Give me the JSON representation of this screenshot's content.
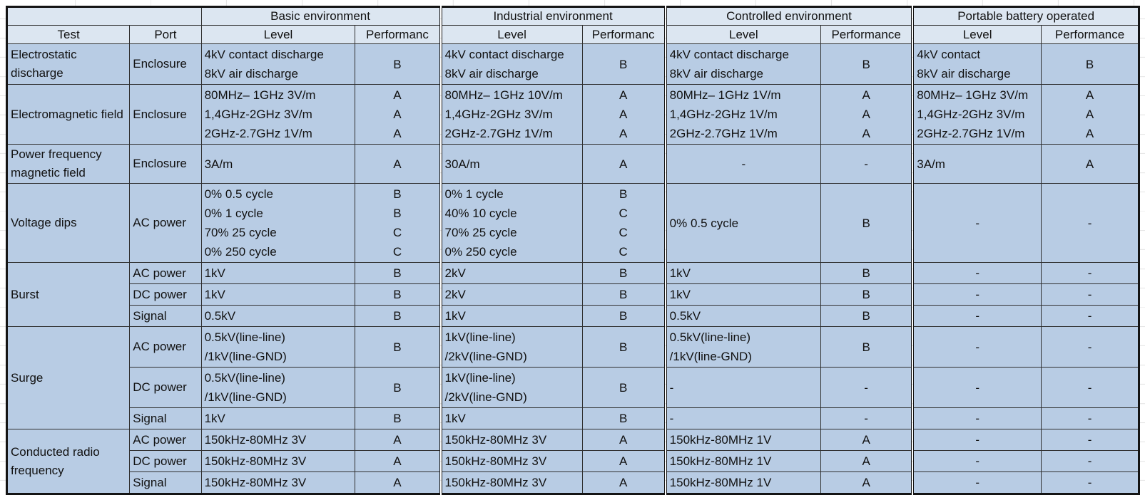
{
  "table": {
    "environments": [
      "Basic environment",
      "Industrial environment",
      "Controlled environment",
      "Portable battery operated"
    ],
    "col_headers": {
      "test": "Test",
      "port": "Port",
      "groups": [
        {
          "level": "Level",
          "performance": "Performanc"
        },
        {
          "level": "Level",
          "performance": "Performanc"
        },
        {
          "level": "Level",
          "performance": "Performance"
        },
        {
          "level": "Level",
          "performance": "Performance"
        }
      ]
    },
    "colors": {
      "header_bg": "#dce6f1",
      "body_bg": "#b8cce4",
      "border": "#141414"
    },
    "rows": [
      {
        "test": "Electrostatic discharge",
        "test_rowspan": 1,
        "port": "Enclosure",
        "groups": [
          {
            "level": [
              "4kV contact discharge",
              "8kV air discharge"
            ],
            "perf": [
              "B"
            ]
          },
          {
            "level": [
              "4kV contact discharge",
              "8kV air discharge"
            ],
            "perf": [
              "B"
            ]
          },
          {
            "level": [
              "4kV contact discharge",
              "8kV air discharge"
            ],
            "perf": [
              "B"
            ]
          },
          {
            "level": [
              "4kV contact",
              "8kV air discharge"
            ],
            "perf": [
              "B"
            ]
          }
        ]
      },
      {
        "test": "Electromagnetic field",
        "test_rowspan": 1,
        "port": "Enclosure",
        "groups": [
          {
            "level": [
              "80MHz– 1GHz 3V/m",
              "1,4GHz-2GHz 3V/m",
              "2GHz-2.7GHz 1V/m"
            ],
            "perf": [
              "A",
              "A",
              "A"
            ]
          },
          {
            "level": [
              "80MHz– 1GHz 10V/m",
              "1,4GHz-2GHz 3V/m",
              "2GHz-2.7GHz 1V/m"
            ],
            "perf": [
              "A",
              "A",
              "A"
            ]
          },
          {
            "level": [
              "80MHz– 1GHz 1V/m",
              "1,4GHz-2GHz 1V/m",
              "2GHz-2.7GHz 1V/m"
            ],
            "perf": [
              "A",
              "A",
              "A"
            ]
          },
          {
            "level": [
              "80MHz– 1GHz 3V/m",
              "1,4GHz-2GHz 3V/m",
              "2GHz-2.7GHz 1V/m"
            ],
            "perf": [
              "A",
              "A",
              "A"
            ]
          }
        ]
      },
      {
        "test": "Power frequency magnetic field",
        "test_rowspan": 1,
        "port": "Enclosure",
        "groups": [
          {
            "level": [
              "3A/m"
            ],
            "perf": [
              "A"
            ]
          },
          {
            "level": [
              "30A/m"
            ],
            "perf": [
              "A"
            ]
          },
          {
            "level": [
              "-"
            ],
            "perf": [
              "-"
            ]
          },
          {
            "level": [
              "3A/m"
            ],
            "perf": [
              "A"
            ]
          }
        ]
      },
      {
        "test": "Voltage dips",
        "test_rowspan": 1,
        "port": "AC power",
        "groups": [
          {
            "level": [
              "0% 0.5 cycle",
              "0% 1 cycle",
              "70% 25 cycle",
              "0% 250 cycle"
            ],
            "perf": [
              "B",
              "B",
              "C",
              "C"
            ]
          },
          {
            "level": [
              "0% 1 cycle",
              "40% 10 cycle",
              "70% 25 cycle",
              "0% 250 cycle"
            ],
            "perf": [
              "B",
              "C",
              "C",
              "C"
            ]
          },
          {
            "level": [
              "0% 0.5 cycle"
            ],
            "perf": [
              "B"
            ]
          },
          {
            "level": [
              "-"
            ],
            "perf": [
              "-"
            ]
          }
        ]
      },
      {
        "test": "Burst",
        "test_rowspan": 3,
        "port": "AC power",
        "groups": [
          {
            "level": [
              "1kV"
            ],
            "perf": [
              "B"
            ]
          },
          {
            "level": [
              "2kV"
            ],
            "perf": [
              "B"
            ]
          },
          {
            "level": [
              "1kV"
            ],
            "perf": [
              "B"
            ]
          },
          {
            "level": [
              "-"
            ],
            "perf": [
              "-"
            ]
          }
        ]
      },
      {
        "port": "DC power",
        "groups": [
          {
            "level": [
              "1kV"
            ],
            "perf": [
              "B"
            ]
          },
          {
            "level": [
              "2kV"
            ],
            "perf": [
              "B"
            ]
          },
          {
            "level": [
              "1kV"
            ],
            "perf": [
              "B"
            ]
          },
          {
            "level": [
              "-"
            ],
            "perf": [
              "-"
            ]
          }
        ]
      },
      {
        "port": "Signal",
        "groups": [
          {
            "level": [
              "0.5kV"
            ],
            "perf": [
              "B"
            ]
          },
          {
            "level": [
              "1kV"
            ],
            "perf": [
              "B"
            ]
          },
          {
            "level": [
              "0.5kV"
            ],
            "perf": [
              "B"
            ]
          },
          {
            "level": [
              "-"
            ],
            "perf": [
              "-"
            ]
          }
        ]
      },
      {
        "test": "Surge",
        "test_rowspan": 3,
        "port": "AC power",
        "groups": [
          {
            "level": [
              "0.5kV(line-line)",
              "/1kV(line-GND)"
            ],
            "perf": [
              "B"
            ]
          },
          {
            "level": [
              "1kV(line-line)",
              "/2kV(line-GND)"
            ],
            "perf": [
              "B"
            ]
          },
          {
            "level": [
              "0.5kV(line-line)",
              "/1kV(line-GND)"
            ],
            "perf": [
              "B"
            ]
          },
          {
            "level": [
              "-"
            ],
            "perf": [
              "-"
            ]
          }
        ]
      },
      {
        "port": "DC power",
        "groups": [
          {
            "level": [
              "0.5kV(line-line)",
              "/1kV(line-GND)"
            ],
            "perf": [
              "B"
            ]
          },
          {
            "level": [
              "1kV(line-line)",
              "/2kV(line-GND)"
            ],
            "perf": [
              "B"
            ]
          },
          {
            "level": {
              "lines": [
                "-"
              ],
              "align": "left"
            },
            "perf": [
              "-"
            ]
          },
          {
            "level": [
              "-"
            ],
            "perf": [
              "-"
            ]
          }
        ]
      },
      {
        "port": "Signal",
        "groups": [
          {
            "level": [
              "1kV"
            ],
            "perf": [
              "B"
            ]
          },
          {
            "level": [
              "1kV"
            ],
            "perf": [
              "B"
            ]
          },
          {
            "level": {
              "lines": [
                "-"
              ],
              "align": "left"
            },
            "perf": [
              "-"
            ]
          },
          {
            "level": [
              "-"
            ],
            "perf": [
              "-"
            ]
          }
        ]
      },
      {
        "test": "Conducted radio frequency",
        "test_rowspan": 3,
        "port": "AC power",
        "groups": [
          {
            "level": [
              "150kHz-80MHz 3V"
            ],
            "perf": [
              "A"
            ]
          },
          {
            "level": [
              "150kHz-80MHz 3V"
            ],
            "perf": [
              "A"
            ]
          },
          {
            "level": [
              "150kHz-80MHz 1V"
            ],
            "perf": [
              "A"
            ]
          },
          {
            "level": [
              "-"
            ],
            "perf": [
              "-"
            ]
          }
        ]
      },
      {
        "port": "DC power",
        "groups": [
          {
            "level": [
              "150kHz-80MHz 3V"
            ],
            "perf": [
              "A"
            ]
          },
          {
            "level": [
              "150kHz-80MHz 3V"
            ],
            "perf": [
              "A"
            ]
          },
          {
            "level": [
              "150kHz-80MHz 1V"
            ],
            "perf": [
              "A"
            ]
          },
          {
            "level": [
              "-"
            ],
            "perf": [
              "-"
            ]
          }
        ]
      },
      {
        "port": "Signal",
        "groups": [
          {
            "level": [
              "150kHz-80MHz 3V"
            ],
            "perf": [
              "A"
            ]
          },
          {
            "level": [
              "150kHz-80MHz 3V"
            ],
            "perf": [
              "A"
            ]
          },
          {
            "level": [
              "150kHz-80MHz 1V"
            ],
            "perf": [
              "A"
            ]
          },
          {
            "level": [
              "-"
            ],
            "perf": [
              "-"
            ]
          }
        ]
      }
    ]
  }
}
